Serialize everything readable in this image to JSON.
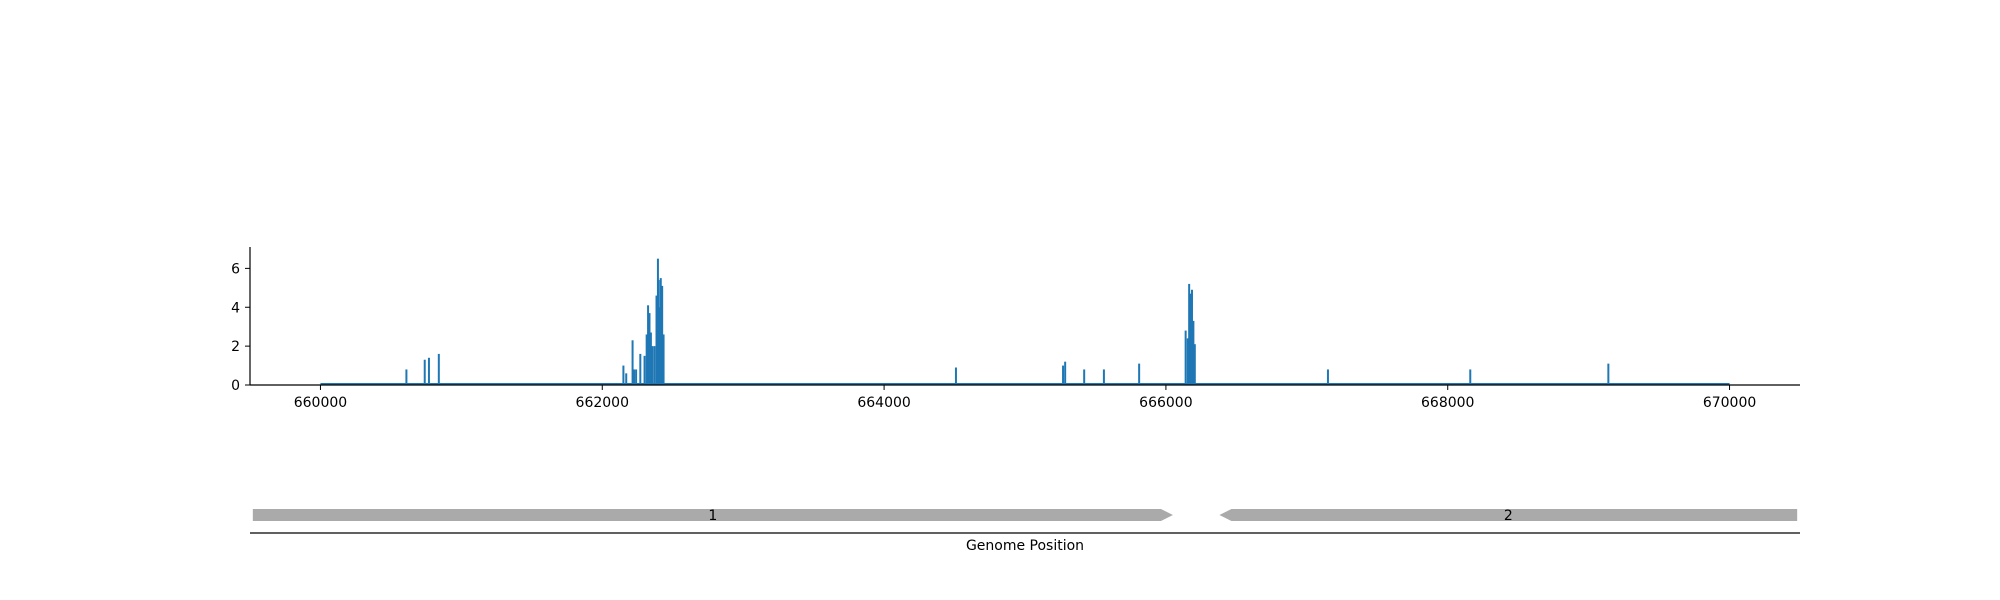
{
  "chart_data": [
    {
      "type": "bar",
      "xlabel": "",
      "ylabel": "",
      "xlim": [
        659500,
        670500
      ],
      "ylim": [
        0,
        7.1
      ],
      "grid": false,
      "xticks": [
        660000,
        662000,
        664000,
        666000,
        668000,
        670000
      ],
      "xtick_labels": [
        "660000",
        "662000",
        "664000",
        "666000",
        "668000",
        "670000"
      ],
      "yticks": [
        0,
        2,
        4,
        6
      ],
      "ytick_labels": [
        "0",
        "2",
        "4",
        "6"
      ],
      "series_color": "#1f77b4",
      "baseline_range": [
        660000,
        670000
      ],
      "x": [
        660610,
        660740,
        660770,
        660840,
        662150,
        662170,
        662215,
        662225,
        662240,
        662270,
        662300,
        662315,
        662325,
        662335,
        662345,
        662355,
        662370,
        662385,
        662395,
        662400,
        662405,
        662415,
        662425,
        662435,
        664510,
        665270,
        665285,
        665420,
        665560,
        665810,
        666140,
        666155,
        666165,
        666175,
        666185,
        666195,
        666205,
        667150,
        668160,
        669140
      ],
      "values": [
        0.8,
        1.3,
        1.4,
        1.6,
        1.0,
        0.6,
        2.3,
        0.8,
        0.8,
        1.6,
        1.5,
        2.6,
        4.1,
        3.7,
        2.7,
        2.0,
        2.0,
        4.6,
        6.5,
        5.4,
        4.0,
        5.5,
        5.1,
        2.6,
        0.9,
        1.0,
        1.2,
        0.8,
        0.8,
        1.1,
        2.8,
        2.4,
        5.2,
        4.7,
        4.9,
        3.3,
        2.1,
        0.8,
        0.8,
        1.1
      ]
    },
    {
      "type": "gene-track",
      "xlabel": "Genome Position",
      "xlim": [
        659500,
        670500
      ],
      "color": "#aaaaaa",
      "features": [
        {
          "label": "1",
          "start": 659520,
          "end": 666050,
          "strand": "+"
        },
        {
          "label": "2",
          "start": 666380,
          "end": 670480,
          "strand": "-"
        }
      ]
    }
  ]
}
